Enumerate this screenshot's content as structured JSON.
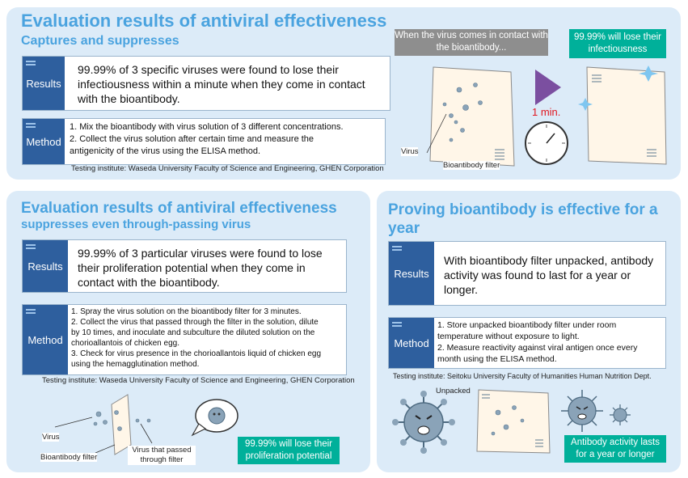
{
  "panel1": {
    "title": "Evaluation results of antiviral effectiveness",
    "subtitle": "Captures and suppresses",
    "results_label": "Results",
    "results_text": "99.99% of 3 specific viruses were found to lose their infectiousness within a minute when they come in contact with the bioantibody.",
    "method_label": "Method",
    "method_lines": [
      "1. Mix the bioantibody with virus solution of 3 different concentrations.",
      "2. Collect the virus solution after certain time and measure the",
      "antigenicity of the virus using the ELISA method."
    ],
    "institute": "Testing institute: Waseda University Faculty of Science and Engineering, GHEN Corporation",
    "callout_gray": "When the virus comes in contact with the bioantibody...",
    "callout_green": "99.99% will lose their infectiousness",
    "time_label": "1 min.",
    "virus_label": "Virus",
    "filter_label": "Bioantibody filter"
  },
  "panel2": {
    "title": "Evaluation results of antiviral effectiveness",
    "subtitle": "suppresses even through-passing virus",
    "results_label": "Results",
    "results_text": "99.99% of 3 particular viruses were found to lose their proliferation potential when they come in contact with the bioantibody.",
    "method_label": "Method",
    "method_lines": [
      "1. Spray the virus solution on the bioantibody filter for 3 minutes.",
      "2. Collect the virus that passed through the filter in the solution, dilute",
      "by 10 times, and inoculate and subculture the diluted solution on the",
      "chorioallantois of chicken egg.",
      "3. Check for virus presence in the chorioallantois liquid of chicken egg",
      "using the hemagglutination method."
    ],
    "institute": "Testing institute: Waseda University Faculty of Science and Engineering, GHEN Corporation",
    "virus_label": "Virus",
    "filter_label": "Bioantibody filter",
    "passed_label": "Virus that passed through filter",
    "callout_green": "99.99% will lose their proliferation potential"
  },
  "panel3": {
    "title": "Proving bioantibody is effective for a year",
    "results_label": "Results",
    "results_text": "With bioantibody filter unpacked, antibody activity was found to last for a year or longer.",
    "method_label": "Method",
    "method_lines": [
      "1. Store unpacked bioantibody filter under room",
      "temperature without exposure to light.",
      "2. Measure reactivity against viral antigen once every",
      "month using the ELISA method."
    ],
    "institute": "Testing institute: Seitoku University Faculty of Humanities Human Nutrition Dept.",
    "unpacked_label": "Unpacked",
    "callout_green": "Antibody activity lasts for a year or longer"
  },
  "colors": {
    "panel_bg": "#dcebf8",
    "title": "#4aa3df",
    "tag": "#2e5f9e",
    "green": "#00b09a",
    "gray": "#8e8e8e",
    "red": "#e0161f",
    "purple": "#7b4fa0"
  }
}
